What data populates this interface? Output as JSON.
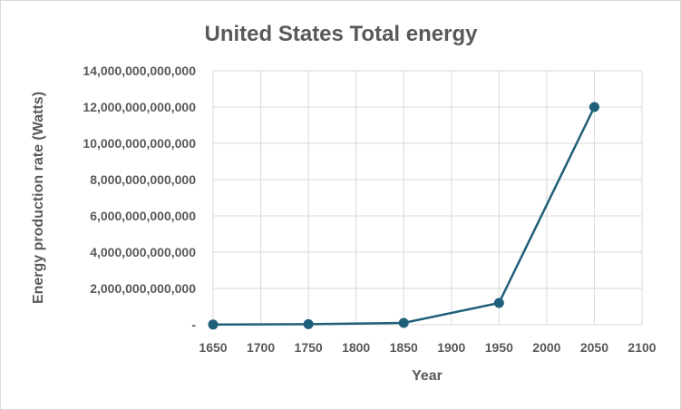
{
  "chart_data": {
    "type": "scatter",
    "title": "United States Total energy",
    "xlabel": "Year",
    "ylabel": "Energy production rate (Watts)",
    "xlim": [
      1650,
      2100
    ],
    "ylim": [
      0,
      14000000000000
    ],
    "x_ticks": [
      "1650",
      "1700",
      "1750",
      "1800",
      "1850",
      "1900",
      "1950",
      "2000",
      "2050",
      "2100"
    ],
    "y_ticks": [
      "-",
      "2,000,000,000,000",
      "4,000,000,000,000",
      "6,000,000,000,000",
      "8,000,000,000,000",
      "10,000,000,000,000",
      "12,000,000,000,000",
      "14,000,000,000,000"
    ],
    "grid": true,
    "series": [
      {
        "color": "#1f5f7a",
        "x": [
          1650,
          1750,
          1850,
          1950,
          2050
        ],
        "y": [
          10000000000,
          30000000000,
          100000000000,
          1200000000000,
          12000000000000
        ]
      }
    ]
  }
}
